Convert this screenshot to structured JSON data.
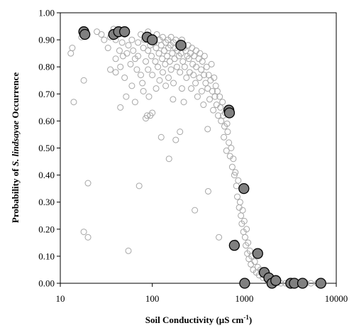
{
  "chart_data": {
    "type": "scatter",
    "xlabel": "Soil Conductivity (µS cm",
    "xlabel_sup": "-1",
    "xlabel_tail": ")",
    "ylabel_pre": "Probability of ",
    "ylabel_italic": "S. lindsayae",
    "ylabel_post": " Occurrence",
    "x_scale": "log",
    "xlim": [
      10,
      10000
    ],
    "ylim": [
      0,
      1
    ],
    "x_ticks": [
      10,
      100,
      1000,
      10000
    ],
    "x_tick_labels": [
      "10",
      "100",
      "1000",
      "10000"
    ],
    "y_ticks": [
      0,
      0.1,
      0.2,
      0.3,
      0.4,
      0.5,
      0.6,
      0.7,
      0.8,
      0.9,
      1.0
    ],
    "y_tick_labels": [
      "0.00",
      "0.10",
      "0.20",
      "0.30",
      "0.40",
      "0.50",
      "0.60",
      "0.70",
      "0.80",
      "0.90",
      "1.00"
    ],
    "grid": false,
    "legend": "none",
    "series": [
      {
        "style": "open-circle",
        "color": "#a6a6a6",
        "points": [
          [
            13,
            0.85
          ],
          [
            13.5,
            0.87
          ],
          [
            14,
            0.67
          ],
          [
            17,
            0.91
          ],
          [
            18,
            0.75
          ],
          [
            18,
            0.19
          ],
          [
            20,
            0.17
          ],
          [
            20,
            0.37
          ],
          [
            25,
            0.93
          ],
          [
            28,
            0.92
          ],
          [
            30,
            0.9
          ],
          [
            33,
            0.87
          ],
          [
            35,
            0.91
          ],
          [
            35,
            0.79
          ],
          [
            38,
            0.94
          ],
          [
            40,
            0.9
          ],
          [
            40,
            0.83
          ],
          [
            40,
            0.78
          ],
          [
            42,
            0.92
          ],
          [
            44,
            0.86
          ],
          [
            45,
            0.8
          ],
          [
            45,
            0.65
          ],
          [
            47,
            0.89
          ],
          [
            48,
            0.84
          ],
          [
            50,
            0.92
          ],
          [
            50,
            0.76
          ],
          [
            52,
            0.69
          ],
          [
            53,
            0.85
          ],
          [
            55,
            0.12
          ],
          [
            55,
            0.88
          ],
          [
            58,
            0.81
          ],
          [
            60,
            0.9
          ],
          [
            60,
            0.73
          ],
          [
            62,
            0.86
          ],
          [
            65,
            0.83
          ],
          [
            65,
            0.67
          ],
          [
            68,
            0.79
          ],
          [
            70,
            0.89
          ],
          [
            70,
            0.84
          ],
          [
            72,
            0.36
          ],
          [
            75,
            0.92
          ],
          [
            75,
            0.77
          ],
          [
            78,
            0.74
          ],
          [
            80,
            0.87
          ],
          [
            80,
            0.71
          ],
          [
            82,
            0.9
          ],
          [
            85,
            0.82
          ],
          [
            85,
            0.61
          ],
          [
            88,
            0.62
          ],
          [
            90,
            0.93
          ],
          [
            90,
            0.86
          ],
          [
            90,
            0.79
          ],
          [
            92,
            0.69
          ],
          [
            95,
            0.88
          ],
          [
            95,
            0.62
          ],
          [
            98,
            0.84
          ],
          [
            100,
            0.91
          ],
          [
            100,
            0.77
          ],
          [
            100,
            0.63
          ],
          [
            105,
            0.89
          ],
          [
            108,
            0.82
          ],
          [
            110,
            0.87
          ],
          [
            110,
            0.72
          ],
          [
            112,
            0.92
          ],
          [
            115,
            0.8
          ],
          [
            118,
            0.85
          ],
          [
            120,
            0.9
          ],
          [
            120,
            0.75
          ],
          [
            125,
            0.88
          ],
          [
            125,
            0.54
          ],
          [
            128,
            0.83
          ],
          [
            130,
            0.91
          ],
          [
            130,
            0.78
          ],
          [
            135,
            0.86
          ],
          [
            138,
            0.81
          ],
          [
            140,
            0.89
          ],
          [
            140,
            0.73
          ],
          [
            145,
            0.84
          ],
          [
            148,
            0.9
          ],
          [
            150,
            0.87
          ],
          [
            150,
            0.76
          ],
          [
            152,
            0.46
          ],
          [
            155,
            0.82
          ],
          [
            158,
            0.88
          ],
          [
            160,
            0.91
          ],
          [
            160,
            0.79
          ],
          [
            165,
            0.85
          ],
          [
            168,
            0.68
          ],
          [
            170,
            0.89
          ],
          [
            170,
            0.74
          ],
          [
            175,
            0.83
          ],
          [
            178,
            0.87
          ],
          [
            180,
            0.9
          ],
          [
            180,
            0.53
          ],
          [
            185,
            0.8
          ],
          [
            188,
            0.86
          ],
          [
            190,
            0.88
          ],
          [
            195,
            0.84
          ],
          [
            200,
            0.89
          ],
          [
            200,
            0.78
          ],
          [
            200,
            0.56
          ],
          [
            205,
            0.85
          ],
          [
            210,
            0.9
          ],
          [
            210,
            0.72
          ],
          [
            215,
            0.82
          ],
          [
            220,
            0.87
          ],
          [
            220,
            0.67
          ],
          [
            225,
            0.8
          ],
          [
            230,
            0.86
          ],
          [
            235,
            0.76
          ],
          [
            240,
            0.84
          ],
          [
            245,
            0.88
          ],
          [
            250,
            0.83
          ],
          [
            255,
            0.78
          ],
          [
            260,
            0.85
          ],
          [
            265,
            0.72
          ],
          [
            270,
            0.87
          ],
          [
            275,
            0.81
          ],
          [
            280,
            0.77
          ],
          [
            285,
            0.84
          ],
          [
            290,
            0.27
          ],
          [
            295,
            0.74
          ],
          [
            300,
            0.86
          ],
          [
            300,
            0.8
          ],
          [
            310,
            0.69
          ],
          [
            320,
            0.83
          ],
          [
            325,
            0.76
          ],
          [
            330,
            0.85
          ],
          [
            340,
            0.79
          ],
          [
            345,
            0.71
          ],
          [
            350,
            0.82
          ],
          [
            360,
            0.66
          ],
          [
            365,
            0.77
          ],
          [
            370,
            0.84
          ],
          [
            380,
            0.74
          ],
          [
            390,
            0.8
          ],
          [
            400,
            0.72
          ],
          [
            400,
            0.57
          ],
          [
            405,
            0.34
          ],
          [
            410,
            0.77
          ],
          [
            420,
            0.68
          ],
          [
            430,
            0.75
          ],
          [
            440,
            0.81
          ],
          [
            450,
            0.71
          ],
          [
            460,
            0.64
          ],
          [
            470,
            0.76
          ],
          [
            480,
            0.69
          ],
          [
            490,
            0.73
          ],
          [
            500,
            0.66
          ],
          [
            510,
            0.71
          ],
          [
            520,
            0.62
          ],
          [
            530,
            0.17
          ],
          [
            540,
            0.69
          ],
          [
            550,
            0.65
          ],
          [
            560,
            0.6
          ],
          [
            580,
            0.67
          ],
          [
            590,
            0.62
          ],
          [
            600,
            0.54
          ],
          [
            610,
            0.58
          ],
          [
            620,
            0.63
          ],
          [
            640,
            0.49
          ],
          [
            650,
            0.59
          ],
          [
            660,
            0.56
          ],
          [
            680,
            0.52
          ],
          [
            700,
            0.47
          ],
          [
            720,
            0.5
          ],
          [
            740,
            0.43
          ],
          [
            760,
            0.46
          ],
          [
            780,
            0.4
          ],
          [
            800,
            0.41
          ],
          [
            800,
            0.15
          ],
          [
            820,
            0.36
          ],
          [
            840,
            0.32
          ],
          [
            860,
            0.38
          ],
          [
            880,
            0.28
          ],
          [
            900,
            0.3
          ],
          [
            920,
            0.25
          ],
          [
            940,
            0.22
          ],
          [
            960,
            0.27
          ],
          [
            980,
            0.19
          ],
          [
            1000,
            0.23
          ],
          [
            1020,
            0.17
          ],
          [
            1040,
            0.14
          ],
          [
            1060,
            0.2
          ],
          [
            1080,
            0.11
          ],
          [
            1100,
            0.15
          ],
          [
            1120,
            0.09
          ],
          [
            1150,
            0.12
          ],
          [
            1180,
            0.07
          ],
          [
            1200,
            0.1
          ],
          [
            1250,
            0.05
          ],
          [
            1300,
            0.08
          ],
          [
            1350,
            0.04
          ],
          [
            1400,
            0.06
          ],
          [
            1450,
            0.03
          ],
          [
            1500,
            0.05
          ],
          [
            1600,
            0.02
          ],
          [
            1700,
            0.03
          ],
          [
            1800,
            0.01
          ],
          [
            1900,
            0.02
          ],
          [
            2000,
            0.01
          ],
          [
            2200,
            0.01
          ],
          [
            2500,
            0.0
          ],
          [
            2800,
            0.0
          ],
          [
            3100,
            0.0
          ],
          [
            3600,
            0.0
          ],
          [
            4100,
            0.0
          ],
          [
            4700,
            0.0
          ],
          [
            5300,
            0.0
          ],
          [
            6200,
            0.0
          ],
          [
            7200,
            0.0
          ]
        ]
      },
      {
        "style": "filled-circle",
        "color": "#808080",
        "points": [
          [
            18,
            0.93
          ],
          [
            18.5,
            0.92
          ],
          [
            38,
            0.92
          ],
          [
            43,
            0.93
          ],
          [
            50,
            0.93
          ],
          [
            88,
            0.91
          ],
          [
            100,
            0.9
          ],
          [
            205,
            0.88
          ],
          [
            680,
            0.64
          ],
          [
            690,
            0.63
          ],
          [
            780,
            0.14
          ],
          [
            990,
            0.35
          ],
          [
            1010,
            0.0
          ],
          [
            1400,
            0.11
          ],
          [
            1650,
            0.04
          ],
          [
            1850,
            0.02
          ],
          [
            2000,
            0.0
          ],
          [
            2200,
            0.01
          ],
          [
            3200,
            0.0
          ],
          [
            3500,
            0.0
          ],
          [
            4300,
            0.0
          ],
          [
            6800,
            0.0
          ]
        ]
      }
    ]
  }
}
